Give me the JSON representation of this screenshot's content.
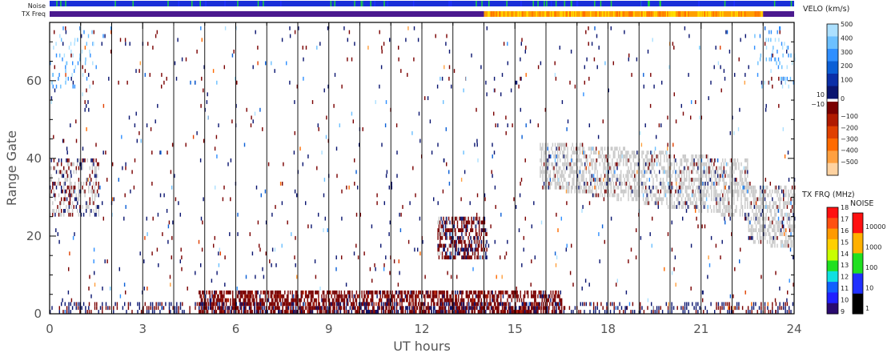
{
  "chart_data": {
    "type": "heatmap",
    "xlabel": "UT hours",
    "ylabel": "Range Gate",
    "xlim": [
      0,
      24
    ],
    "ylim": [
      0,
      75
    ],
    "x_ticks": [
      "0",
      "3",
      "6",
      "9",
      "12",
      "15",
      "18",
      "21",
      "24"
    ],
    "y_ticks": [
      "0",
      "20",
      "40",
      "60"
    ],
    "status_bars": {
      "noise_label": "Noise",
      "txfreq_label": "TX Freq",
      "txfreq_segments": [
        {
          "start": 0,
          "end": 14.0,
          "color": "#4b1a8f"
        },
        {
          "start": 14.0,
          "end": 23.0,
          "color": "#ffa000"
        },
        {
          "start": 23.0,
          "end": 24,
          "color": "#4b1a8f"
        }
      ]
    },
    "velocity_colorbar": {
      "title": "VELO (km/s)",
      "pos_labels": [
        "500",
        "400",
        "300",
        "200",
        "100",
        "10"
      ],
      "neg_labels": [
        "0",
        "−10",
        "−100",
        "−200",
        "−300",
        "−400",
        "−500"
      ],
      "pos_colors": [
        "#ace0ff",
        "#6cc0ff",
        "#2f8fff",
        "#0b5fd6",
        "#0b2fa8",
        "#0a1570"
      ],
      "neg_colors": [
        "#7a0000",
        "#b01a00",
        "#e04000",
        "#ff6a00",
        "#ffa040",
        "#ffd2a0"
      ]
    },
    "txfreq_colorbar": {
      "title": "TX FRQ (MHz)",
      "labels": [
        "18",
        "17",
        "16",
        "15",
        "14",
        "13",
        "12",
        "11",
        "10",
        "9"
      ],
      "colors": [
        "#ff1010",
        "#ff5010",
        "#ff9a00",
        "#ffd000",
        "#c8ff00",
        "#20e020",
        "#10e0e0",
        "#1060ff",
        "#2020ff",
        "#2a0a70"
      ]
    },
    "noise_colorbar": {
      "title": "NOISE",
      "labels": [
        "10000",
        "1000",
        "100",
        "10",
        "1"
      ],
      "colors": [
        "#ff1010",
        "#ffb000",
        "#20e020",
        "#2030ff",
        "#000000"
      ]
    },
    "features": [
      {
        "name": "ground-scatter-dusk",
        "type": "ground_scatter",
        "x_range": [
          15.8,
          24
        ],
        "gate_range": [
          15,
          47
        ],
        "color": "#c8c8c8"
      },
      {
        "name": "ground-scatter-early",
        "type": "ground_scatter",
        "x_range": [
          0,
          1.6
        ],
        "gate_range": [
          25,
          40
        ],
        "color": "#c8c8c8"
      },
      {
        "name": "negative-velocity-near-range",
        "type": "velocity",
        "x_range": [
          4.8,
          16.5
        ],
        "gate_range": [
          0,
          6
        ],
        "color": "#7a0000"
      },
      {
        "name": "midday-patch",
        "type": "velocity",
        "x_range": [
          12.5,
          14.1
        ],
        "gate_range": [
          14,
          25
        ],
        "color": "#7a0000"
      }
    ]
  }
}
